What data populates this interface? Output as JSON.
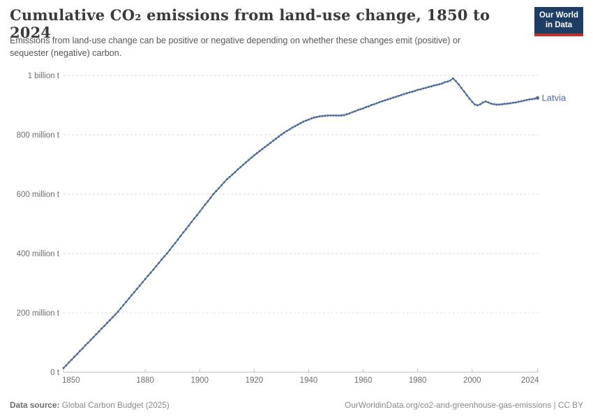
{
  "header": {
    "title": "Cumulative CO₂ emissions from land-use change, 1850 to 2024",
    "subtitle": "Emissions from land-use change can be positive or negative depending on whether these changes emit (positive) or sequester (negative) carbon.",
    "logo": {
      "line1": "Our World",
      "line2": "in Data",
      "bg_color": "#1d3d63",
      "bar_color": "#b5352e"
    }
  },
  "footer": {
    "source_label": "Data source:",
    "source_text": " Global Carbon Budget (2025)",
    "attribution": "OurWorldinData.org/co2-and-greenhouse-gas-emissions | CC BY"
  },
  "colors": {
    "series_blue": "#4c6a9c",
    "grid_line": "#dcdcdc",
    "axis_line": "#bdbdbd",
    "axis_text": "#6d6d6d",
    "title_text": "#3a3a3a"
  },
  "chart_data": {
    "type": "line",
    "title": "Cumulative CO₂ emissions from land-use change, 1850 to 2024",
    "unit": "tonnes of CO₂",
    "grid": "horizontal-dashed",
    "legend_position": "end-of-line-label",
    "xlim": [
      1850,
      2024
    ],
    "ylim_million_tonnes": [
      0,
      1000
    ],
    "x_ticks": [
      1850,
      1880,
      1900,
      1920,
      1940,
      1960,
      1980,
      2000,
      2024
    ],
    "y_ticks": [
      {
        "value_million_tonnes": 0,
        "label": "0 t"
      },
      {
        "value_million_tonnes": 200,
        "label": "200 million t"
      },
      {
        "value_million_tonnes": 400,
        "label": "400 million t"
      },
      {
        "value_million_tonnes": 600,
        "label": "600 million t"
      },
      {
        "value_million_tonnes": 800,
        "label": "800 million t"
      },
      {
        "value_million_tonnes": 1000,
        "label": "1 billion t"
      }
    ],
    "series": [
      {
        "name": "Latvia",
        "color": "#4c6a9c",
        "marker": "dot-every-year",
        "start_year": 1850,
        "end_year": 2024,
        "values_million_tonnes": [
          14,
          23,
          33,
          42,
          52,
          61,
          71,
          80,
          90,
          99,
          109,
          118,
          128,
          137,
          147,
          156,
          166,
          175,
          185,
          194,
          204,
          215,
          226,
          237,
          248,
          259,
          270,
          281,
          292,
          303,
          314,
          325,
          335,
          346,
          357,
          368,
          379,
          390,
          400,
          412,
          424,
          435,
          447,
          459,
          471,
          482,
          494,
          506,
          518,
          529,
          541,
          553,
          565,
          576,
          588,
          600,
          610,
          620,
          630,
          640,
          650,
          658,
          666,
          674,
          683,
          691,
          699,
          707,
          715,
          723,
          731,
          738,
          745,
          752,
          759,
          766,
          773,
          780,
          787,
          794,
          801,
          807,
          813,
          818,
          824,
          829,
          834,
          839,
          844,
          848,
          851,
          855,
          858,
          860,
          862,
          863,
          864,
          865,
          865,
          865,
          865,
          865,
          865,
          866,
          869,
          872,
          876,
          879,
          883,
          886,
          889,
          893,
          896,
          900,
          903,
          906,
          910,
          913,
          916,
          919,
          922,
          925,
          928,
          931,
          934,
          937,
          940,
          943,
          945,
          948,
          951,
          953,
          956,
          958,
          961,
          963,
          966,
          968,
          970,
          973,
          977,
          979,
          983,
          990,
          981,
          970,
          958,
          946,
          934,
          922,
          911,
          902,
          899,
          903,
          909,
          912,
          909,
          905,
          903,
          902,
          902,
          903,
          904,
          905,
          906,
          908,
          909,
          911,
          913,
          915,
          917,
          919,
          920,
          922,
          924
        ]
      }
    ]
  }
}
